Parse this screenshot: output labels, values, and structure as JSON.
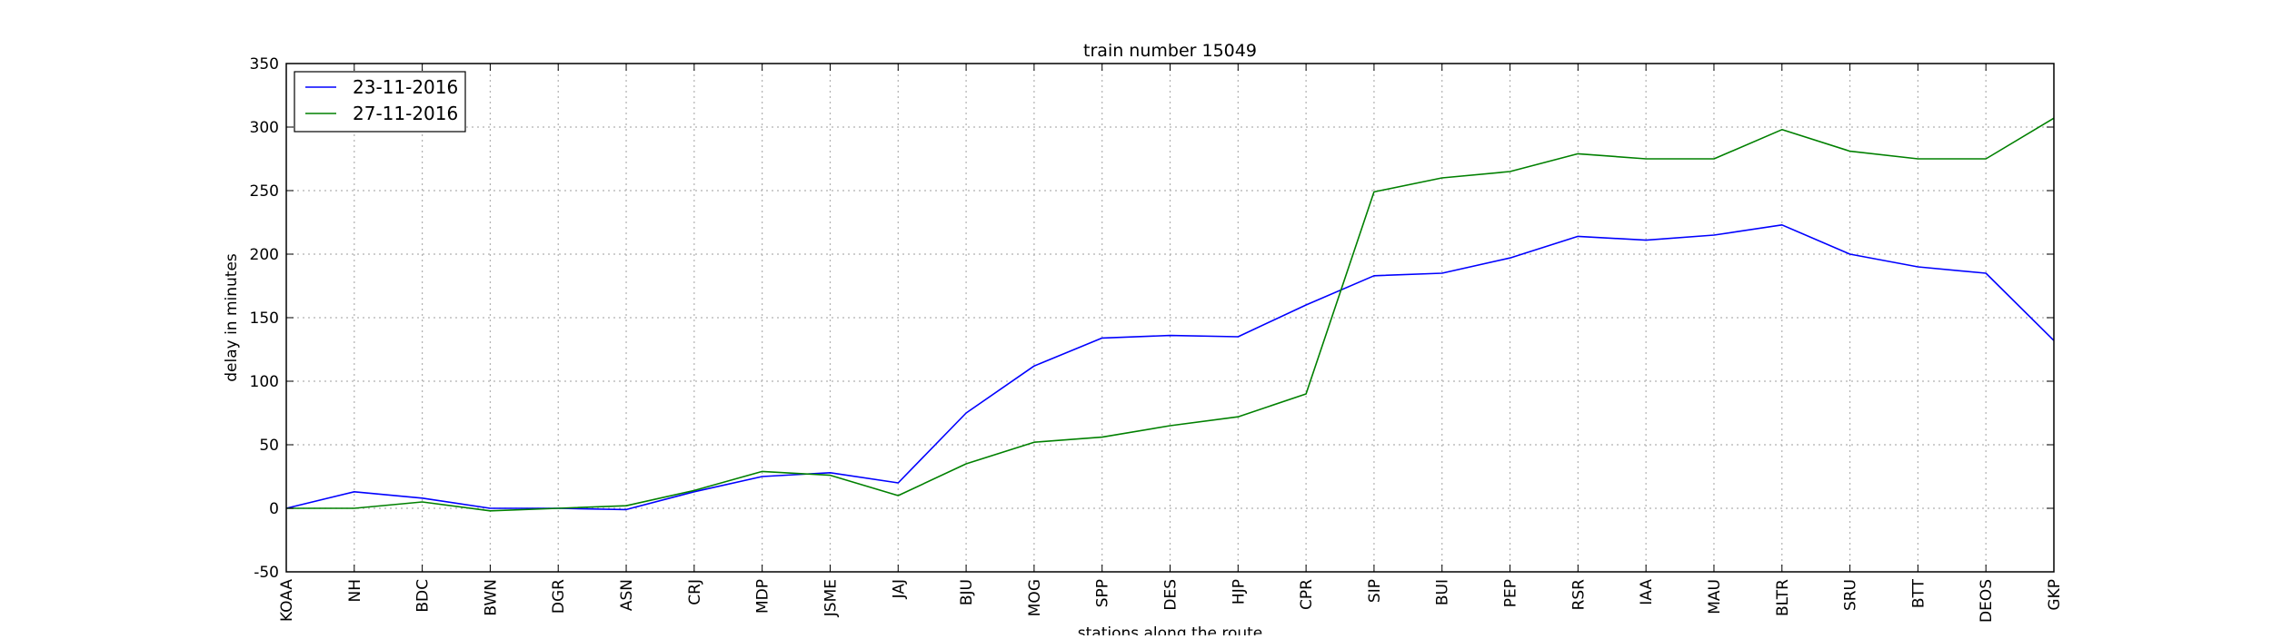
{
  "chart_data": {
    "type": "line",
    "title": "train number 15049",
    "xlabel": "stations along the route",
    "ylabel": "delay in minutes",
    "categories": [
      "KOAA",
      "NH",
      "BDC",
      "BWN",
      "DGR",
      "ASN",
      "CRJ",
      "MDP",
      "JSME",
      "JAJ",
      "BJU",
      "MOG",
      "SPP",
      "DES",
      "HJP",
      "CPR",
      "SIP",
      "BUI",
      "PEP",
      "RSR",
      "IAA",
      "MAU",
      "BLTR",
      "SRU",
      "BTT",
      "DEOS",
      "GKP"
    ],
    "ylim": [
      -50,
      350
    ],
    "yticks": [
      -50,
      0,
      50,
      100,
      150,
      200,
      250,
      300,
      350
    ],
    "grid": true,
    "legend_position": "top-left",
    "series": [
      {
        "name": "23-11-2016",
        "color": "#0000ff",
        "values": [
          0,
          13,
          8,
          0,
          0,
          -1,
          13,
          25,
          28,
          20,
          75,
          112,
          134,
          136,
          135,
          160,
          183,
          185,
          197,
          214,
          211,
          215,
          223,
          200,
          190,
          185,
          132
        ]
      },
      {
        "name": "27-11-2016",
        "color": "#008000",
        "values": [
          0,
          0,
          5,
          -2,
          0,
          2,
          14,
          29,
          26,
          10,
          35,
          52,
          56,
          65,
          72,
          90,
          249,
          260,
          265,
          279,
          275,
          275,
          298,
          281,
          275,
          275,
          307
        ]
      }
    ]
  }
}
